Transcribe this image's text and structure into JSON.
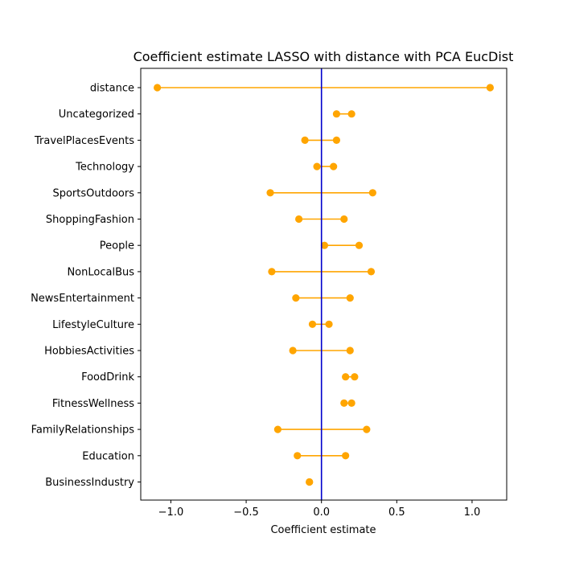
{
  "chart_data": {
    "type": "interval",
    "title": "Coefficient estimate LASSO  with distance with PCA EucDist",
    "xlabel": "Coefficient estimate",
    "ylabel": "",
    "xlim": [
      -1.2,
      1.23
    ],
    "xticks": [
      -1.0,
      -0.5,
      0.0,
      0.5,
      1.0
    ],
    "xtick_labels": [
      "−1.0",
      "−0.5",
      "0.0",
      "0.5",
      "1.0"
    ],
    "reference_line": {
      "x": 0.0,
      "color": "#0000cc"
    },
    "color": "#ffa500",
    "grid": false,
    "categories": [
      "distance",
      "Uncategorized",
      "TravelPlacesEvents",
      "Technology",
      "SportsOutdoors",
      "ShoppingFashion",
      "People",
      "NonLocalBus",
      "NewsEntertainment",
      "LifestyleCulture",
      "HobbiesActivities",
      "FoodDrink",
      "FitnessWellness",
      "FamilyRelationships",
      "Education",
      "BusinessIndustry"
    ],
    "intervals": [
      {
        "low": -1.09,
        "high": 1.12
      },
      {
        "low": 0.1,
        "high": 0.2
      },
      {
        "low": -0.11,
        "high": 0.1
      },
      {
        "low": -0.03,
        "high": 0.08
      },
      {
        "low": -0.34,
        "high": 0.34
      },
      {
        "low": -0.15,
        "high": 0.15
      },
      {
        "low": 0.02,
        "high": 0.25
      },
      {
        "low": -0.33,
        "high": 0.33
      },
      {
        "low": -0.17,
        "high": 0.19
      },
      {
        "low": -0.06,
        "high": 0.05
      },
      {
        "low": -0.19,
        "high": 0.19
      },
      {
        "low": 0.16,
        "high": 0.22
      },
      {
        "low": 0.15,
        "high": 0.2
      },
      {
        "low": -0.29,
        "high": 0.3
      },
      {
        "low": -0.16,
        "high": 0.16
      },
      {
        "low": -0.08,
        "high": -0.08
      }
    ]
  }
}
